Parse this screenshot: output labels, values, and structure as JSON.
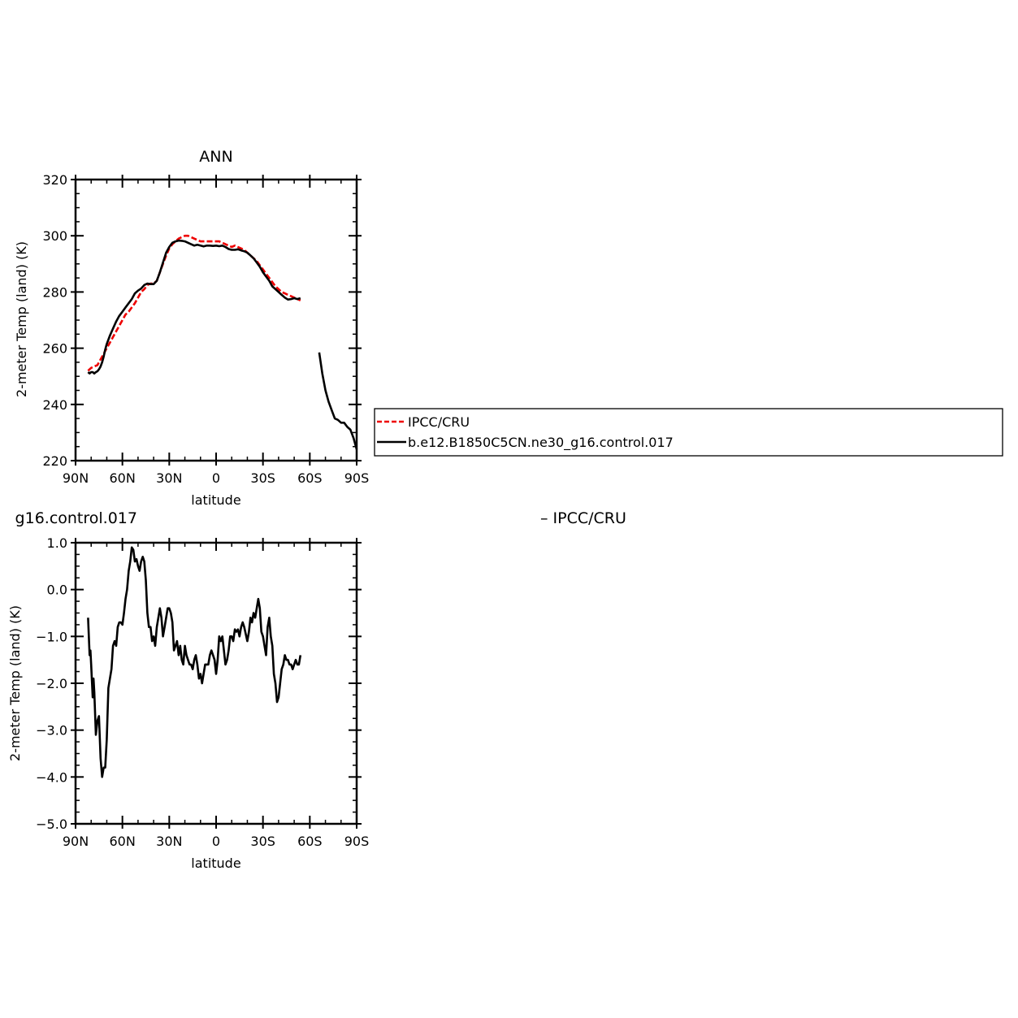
{
  "chart_data": [
    {
      "type": "line",
      "title": "ANN",
      "xlabel": "latitude",
      "ylabel": "2-meter Temp (land) (K)",
      "xlim": [
        90,
        -90
      ],
      "ylim": [
        220,
        320
      ],
      "x_ticks": [
        90,
        60,
        30,
        0,
        -30,
        -60,
        -90
      ],
      "x_tick_labels": [
        "90N",
        "60N",
        "30N",
        "0",
        "30S",
        "60S",
        "90S"
      ],
      "y_ticks": [
        220,
        240,
        260,
        280,
        300,
        320
      ],
      "y_tick_labels": [
        "220",
        "240",
        "260",
        "280",
        "300",
        "320"
      ],
      "legend_placement": "right",
      "series": [
        {
          "name": "IPCC/CRU",
          "color": "#ee0000",
          "dash": "dashed",
          "x": [
            82,
            80,
            78,
            76,
            74,
            72,
            70,
            68,
            66,
            64,
            62,
            60,
            58,
            56,
            54,
            52,
            50,
            48,
            46,
            44,
            42,
            40,
            38,
            36,
            34,
            32,
            30,
            28,
            26,
            24,
            22,
            20,
            18,
            16,
            14,
            12,
            10,
            8,
            6,
            4,
            2,
            0,
            -2,
            -4,
            -6,
            -8,
            -10,
            -12,
            -14,
            -16,
            -18,
            -20,
            -22,
            -24,
            -26,
            -28,
            -30,
            -32,
            -34,
            -36,
            -38,
            -40,
            -42,
            -44,
            -46,
            -48,
            -50,
            -52,
            -54
          ],
          "values": [
            252,
            253,
            253.5,
            254,
            256,
            258,
            260,
            262,
            264,
            266,
            268,
            270,
            272,
            273,
            274.5,
            276,
            278,
            280,
            281,
            282.5,
            283,
            283,
            284,
            287,
            290,
            293,
            295.5,
            297,
            298,
            299,
            299.5,
            300,
            300,
            299.5,
            299,
            298.5,
            298,
            298,
            298,
            298,
            298,
            298,
            298,
            297.5,
            297,
            296.5,
            296,
            296.5,
            296,
            295.5,
            295,
            294,
            293,
            292,
            291,
            289.5,
            288,
            286.5,
            285,
            283.5,
            282,
            281,
            280,
            279.5,
            279,
            278.5,
            278,
            277.5,
            277
          ]
        },
        {
          "name": "b.e12.B1850C5CN.ne30_g16.control.017",
          "color": "#000000",
          "dash": "solid",
          "x": [
            82,
            81,
            80,
            79,
            78,
            77,
            76,
            75,
            74,
            73,
            72,
            71,
            70,
            68,
            66,
            64,
            62,
            60,
            58,
            56,
            54,
            52,
            50,
            48,
            46,
            44,
            42,
            40,
            38,
            36,
            34,
            32,
            30,
            28,
            26,
            24,
            22,
            20,
            18,
            16,
            14,
            12,
            10,
            8,
            6,
            4,
            2,
            0,
            -2,
            -4,
            -6,
            -8,
            -10,
            -12,
            -14,
            -16,
            -18,
            -20,
            -22,
            -24,
            -26,
            -28,
            -30,
            -32,
            -34,
            -36,
            -38,
            -40,
            -42,
            -44,
            -46,
            -48,
            -50,
            -52,
            -54,
            null,
            -66,
            -68,
            -70,
            -72,
            -74,
            -76,
            -78,
            -80,
            -82,
            -84,
            -86,
            -88,
            -90
          ],
          "values": [
            251.5,
            251,
            251.5,
            251.5,
            251,
            251.5,
            251.8,
            252.5,
            253.5,
            255,
            257,
            259.5,
            261.5,
            264.5,
            267,
            269.5,
            271.5,
            273,
            274.5,
            276,
            277.5,
            279.5,
            280.5,
            281.2,
            282.5,
            283,
            282.8,
            282.8,
            284,
            287,
            290.5,
            294,
            296,
            297.5,
            298,
            298.3,
            298.2,
            298,
            297.5,
            297,
            296.5,
            296.8,
            296.5,
            296.2,
            296.5,
            296.5,
            296.4,
            296.5,
            296.3,
            296.5,
            296,
            295.3,
            295,
            295,
            295.2,
            294.8,
            294.5,
            294,
            293,
            292,
            290.5,
            289,
            287,
            285.5,
            284,
            282,
            281,
            280,
            279,
            278,
            277.3,
            277.5,
            277.8,
            277.5,
            277.8,
            null,
            258.5,
            251,
            245,
            241,
            238,
            235,
            234.5,
            233.5,
            233.5,
            232,
            231,
            228,
            224
          ]
        }
      ]
    },
    {
      "type": "line",
      "title": "g16.control.017",
      "subtitle": "– IPCC/CRU",
      "xlabel": "latitude",
      "ylabel": "2-meter Temp (land) (K)",
      "xlim": [
        90,
        -90
      ],
      "ylim": [
        -5,
        1
      ],
      "x_ticks": [
        90,
        60,
        30,
        0,
        -30,
        -60,
        -90
      ],
      "x_tick_labels": [
        "90N",
        "60N",
        "30N",
        "0",
        "30S",
        "60S",
        "90S"
      ],
      "y_ticks": [
        -5,
        -4,
        -3,
        -2,
        -1,
        0,
        1
      ],
      "y_tick_labels": [
        "−5.0",
        "−4.0",
        "−3.0",
        "−2.0",
        "−1.0",
        "0.0",
        "1.0"
      ],
      "series": [
        {
          "color": "#000000",
          "dash": "solid",
          "x": [
            82,
            81,
            80.5,
            80,
            79,
            78.5,
            78,
            77,
            76,
            75,
            74,
            73,
            72,
            71,
            70,
            69,
            68,
            67,
            66,
            65,
            64,
            63,
            62,
            61,
            60,
            59,
            58,
            57,
            56,
            55,
            54,
            53,
            52,
            51,
            50,
            49,
            48,
            47,
            46,
            45,
            44,
            43,
            42,
            41,
            40,
            39,
            38,
            37,
            36,
            35,
            34,
            33,
            32,
            31,
            30,
            29,
            28,
            27,
            26,
            25,
            24,
            23,
            22,
            21,
            20,
            19,
            18,
            17,
            16,
            15,
            14,
            13,
            12,
            11,
            10,
            9,
            8,
            7,
            6,
            5,
            4,
            3,
            2,
            1,
            0,
            -1,
            -2,
            -3,
            -4,
            -5,
            -6,
            -7,
            -8,
            -9,
            -10,
            -11,
            -12,
            -13,
            -14,
            -15,
            -16,
            -17,
            -18,
            -19,
            -20,
            -21,
            -22,
            -23,
            -24,
            -25,
            -26,
            -27,
            -28,
            -29,
            -30,
            -31,
            -32,
            -33,
            -34,
            -35,
            -36,
            -37,
            -38,
            -39,
            -40,
            -41,
            -42,
            -43,
            -44,
            -45,
            -46,
            -47,
            -48,
            -49,
            -50,
            -51,
            -52,
            -53,
            -54
          ],
          "values": [
            -0.6,
            -1.4,
            -1.3,
            -1.6,
            -2.3,
            -1.9,
            -2.2,
            -3.1,
            -2.8,
            -2.7,
            -3.6,
            -4.0,
            -3.8,
            -3.8,
            -3.2,
            -2.1,
            -1.9,
            -1.7,
            -1.2,
            -1.1,
            -1.2,
            -0.8,
            -0.7,
            -0.7,
            -0.75,
            -0.5,
            -0.2,
            0.0,
            0.4,
            0.6,
            0.9,
            0.85,
            0.6,
            0.65,
            0.5,
            0.4,
            0.6,
            0.7,
            0.6,
            0.2,
            -0.5,
            -0.8,
            -0.8,
            -1.1,
            -1.0,
            -1.2,
            -0.8,
            -0.6,
            -0.4,
            -0.6,
            -1.0,
            -0.8,
            -0.6,
            -0.4,
            -0.4,
            -0.5,
            -0.7,
            -1.3,
            -1.2,
            -1.1,
            -1.4,
            -1.2,
            -1.5,
            -1.6,
            -1.2,
            -1.4,
            -1.5,
            -1.6,
            -1.6,
            -1.7,
            -1.5,
            -1.4,
            -1.6,
            -1.9,
            -1.8,
            -2.0,
            -1.8,
            -1.6,
            -1.6,
            -1.6,
            -1.4,
            -1.3,
            -1.4,
            -1.5,
            -1.8,
            -1.5,
            -1.0,
            -1.1,
            -1.0,
            -1.3,
            -1.6,
            -1.5,
            -1.3,
            -1.0,
            -1.0,
            -1.1,
            -0.85,
            -0.9,
            -0.85,
            -1.0,
            -0.8,
            -0.7,
            -0.8,
            -0.95,
            -1.1,
            -0.9,
            -0.6,
            -0.7,
            -0.5,
            -0.6,
            -0.4,
            -0.2,
            -0.4,
            -0.9,
            -1.0,
            -1.2,
            -1.4,
            -0.8,
            -0.6,
            -1.0,
            -1.2,
            -1.8,
            -2.0,
            -2.4,
            -2.3,
            -2.0,
            -1.7,
            -1.6,
            -1.4,
            -1.5,
            -1.5,
            -1.6,
            -1.6,
            -1.7,
            -1.6,
            -1.5,
            -1.6,
            -1.6,
            -1.4
          ]
        }
      ]
    }
  ]
}
